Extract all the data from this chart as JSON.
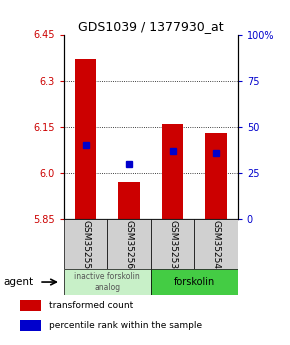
{
  "title": "GDS1039 / 1377930_at",
  "samples": [
    "GSM35255",
    "GSM35256",
    "GSM35253",
    "GSM35254"
  ],
  "red_values": [
    6.37,
    5.97,
    6.16,
    6.13
  ],
  "blue_values": [
    6.09,
    6.03,
    6.07,
    6.065
  ],
  "ylim": [
    5.85,
    6.45
  ],
  "yticks": [
    5.85,
    6.0,
    6.15,
    6.3,
    6.45
  ],
  "right_yticks": [
    0,
    25,
    50,
    75,
    100
  ],
  "right_ylabels": [
    "0",
    "25",
    "50",
    "75",
    "100%"
  ],
  "bar_width": 0.5,
  "red_color": "#cc0000",
  "blue_color": "#0000cc",
  "group1_label": "inactive forskolin\nanalog",
  "group2_label": "forskolin",
  "group1_color": "#c8f0c8",
  "group2_color": "#44cc44",
  "sample_bg": "#d0d0d0",
  "legend1": "transformed count",
  "legend2": "percentile rank within the sample",
  "agent_label": "agent",
  "title_fontsize": 9,
  "tick_fontsize": 7,
  "sample_fontsize": 6.5
}
